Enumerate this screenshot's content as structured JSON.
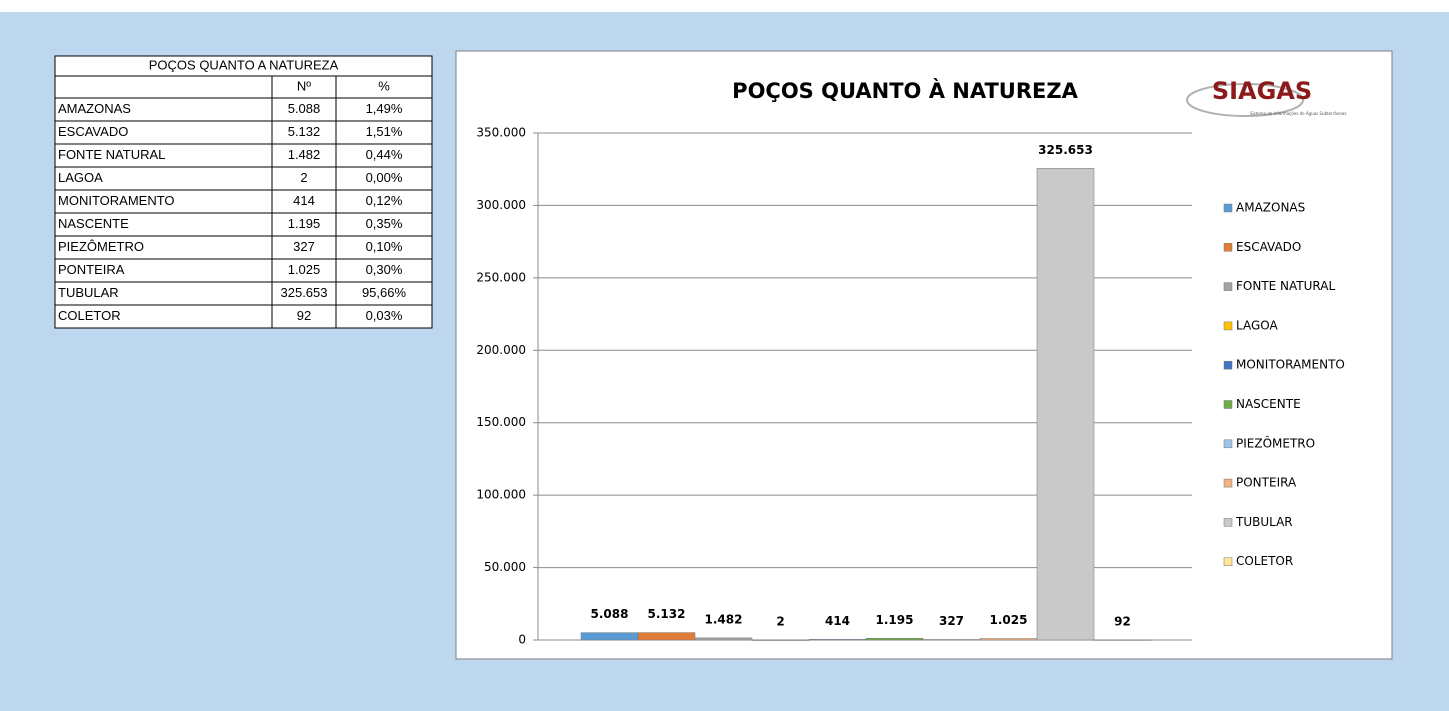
{
  "table": {
    "title": "POÇOS QUANTO A NATUREZA",
    "header": [
      "Nº",
      "%"
    ],
    "rows": [
      [
        "AMAZONAS",
        "5.088",
        "1,49%"
      ],
      [
        "ESCAVADO",
        "5.132",
        "1,51%"
      ],
      [
        "FONTE NATURAL",
        "1.482",
        "0,44%"
      ],
      [
        "LAGOA",
        "2",
        "0,00%"
      ],
      [
        "MONITORAMENTO",
        "414",
        "0,12%"
      ],
      [
        "NASCENTE",
        "1.195",
        "0,35%"
      ],
      [
        "PIEZÔMETRO",
        "327",
        "0,10%"
      ],
      [
        "PONTEIRA",
        "1.025",
        "0,30%"
      ],
      [
        "TUBULAR",
        "325.653",
        "95,66%"
      ],
      [
        "COLETOR",
        "92",
        "0,03%"
      ]
    ]
  },
  "logo": {
    "name": "SIAGAS",
    "subtitle": "Sistema de Informações de Águas Subterrâneas"
  },
  "chart_data": {
    "type": "bar",
    "title": "POÇOS QUANTO À NATUREZA",
    "categories": [
      "AMAZONAS",
      "ESCAVADO",
      "FONTE NATURAL",
      "LAGOA",
      "MONITORAMENTO",
      "NASCENTE",
      "PIEZÔMETRO",
      "PONTEIRA",
      "TUBULAR",
      "COLETOR"
    ],
    "values": [
      5088,
      5132,
      1482,
      2,
      414,
      1195,
      327,
      1025,
      325653,
      92
    ],
    "value_labels": [
      "5.088",
      "5.132",
      "1.482",
      "2",
      "414",
      "1.195",
      "327",
      "1.025",
      "325.653",
      "92"
    ],
    "colors": [
      "#5b9bd5",
      "#e07b39",
      "#a5a5a5",
      "#ffc000",
      "#4472c4",
      "#70ad47",
      "#9dc3e6",
      "#f4b183",
      "#c9c9c9",
      "#ffe699"
    ],
    "ylim": [
      0,
      350000
    ],
    "yticks": [
      0,
      {
        "value": 50000,
        "label": "50.000"
      },
      {
        "value": 100000,
        "label": "100.000"
      },
      {
        "value": 150000,
        "label": "150.000"
      },
      {
        "value": 200000,
        "label": "200.000"
      },
      {
        "value": 250000,
        "label": "250.000"
      },
      {
        "value": 300000,
        "label": "300.000"
      },
      {
        "value": 350000,
        "label": "350.000"
      }
    ],
    "grid": true,
    "legend": "right"
  }
}
